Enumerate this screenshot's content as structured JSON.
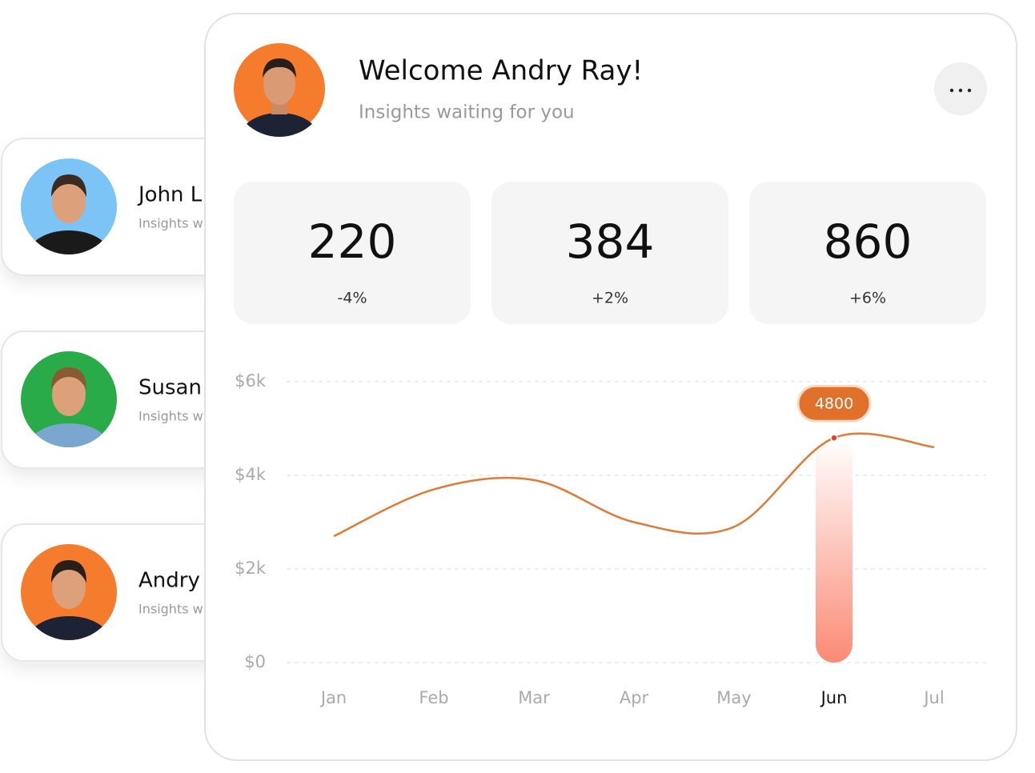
{
  "sidebar": {
    "cards": [
      {
        "name": "John L",
        "subtitle": "Insights w"
      },
      {
        "name": "Susan",
        "subtitle": "Insights w"
      },
      {
        "name": "Andry",
        "subtitle": "Insights w"
      }
    ]
  },
  "header": {
    "title": "Welcome Andry Ray!",
    "subtitle": "Insights waiting for you"
  },
  "stats": [
    {
      "value": "220",
      "change": "-4%"
    },
    {
      "value": "384",
      "change": "+2%"
    },
    {
      "value": "860",
      "change": "+6%"
    }
  ],
  "chart_data": {
    "type": "line",
    "categories": [
      "Jan",
      "Feb",
      "Mar",
      "Apr",
      "May",
      "Jun",
      "Jul"
    ],
    "values": [
      2700,
      3700,
      3900,
      3000,
      2900,
      4800,
      4600
    ],
    "color": "#e07a35",
    "ylim": [
      0,
      6000
    ],
    "yticks": [
      {
        "value": 0,
        "label": "$0"
      },
      {
        "value": 2000,
        "label": "$2k"
      },
      {
        "value": 4000,
        "label": "$4k"
      },
      {
        "value": 6000,
        "label": "$6k"
      }
    ],
    "grid": true,
    "highlight": "Jun"
  }
}
